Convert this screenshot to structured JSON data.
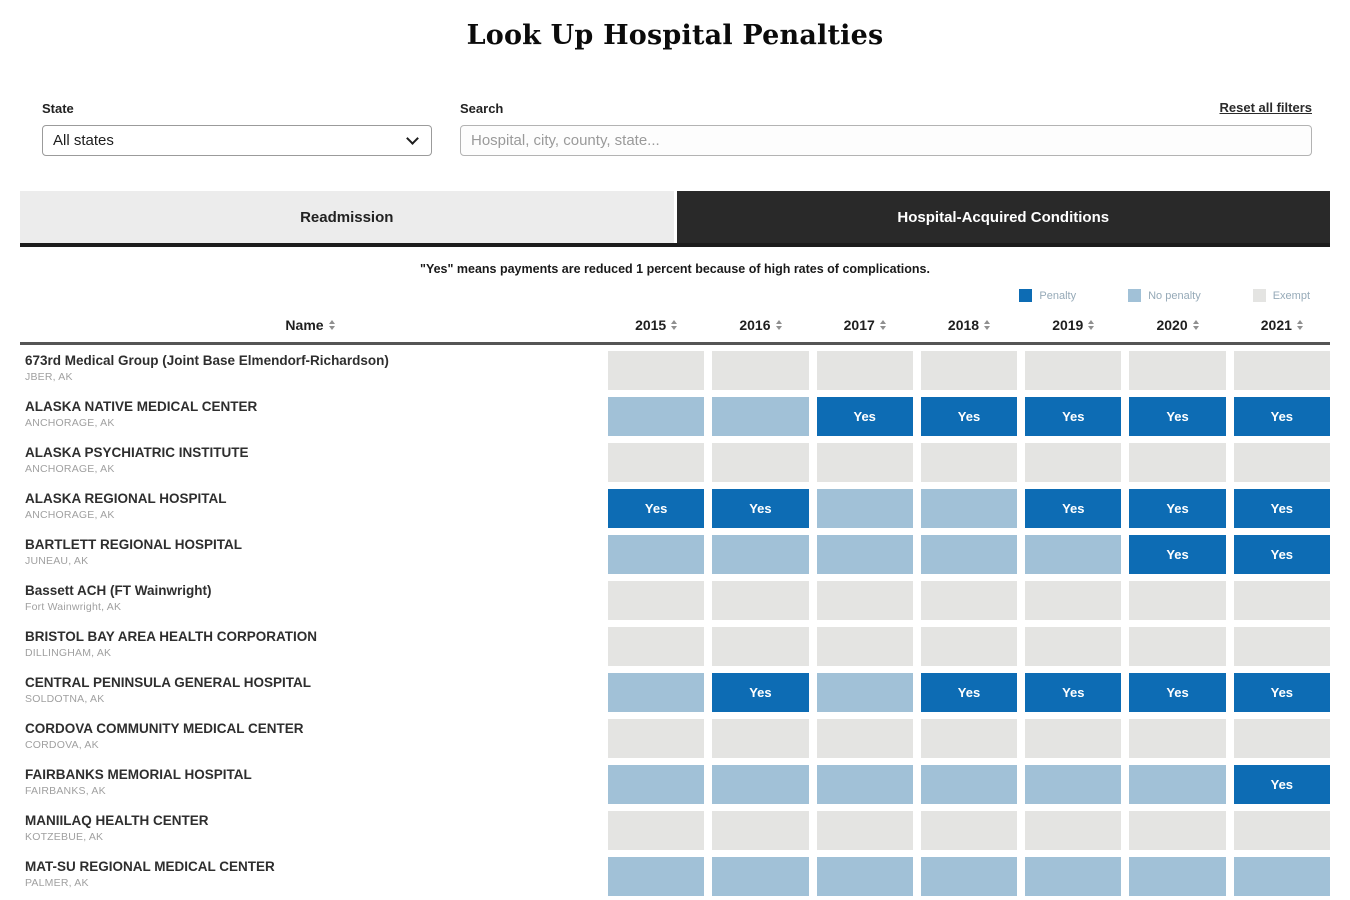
{
  "page": {
    "title": "Look Up Hospital Penalties"
  },
  "filters": {
    "reset_label": "Reset all filters",
    "state_label": "State",
    "state_value": "All states",
    "search_label": "Search",
    "search_placeholder": "Hospital, city, county, state..."
  },
  "tabs": [
    {
      "label": "Readmission",
      "active": false
    },
    {
      "label": "Hospital-Acquired Conditions",
      "active": true
    }
  ],
  "note": "\"Yes\" means payments are reduced 1 percent because of high rates of complications.",
  "legend": [
    {
      "label": "Penalty",
      "color": "#0d6cb4"
    },
    {
      "label": "No penalty",
      "color": "#a1c1d7"
    },
    {
      "label": "Exempt",
      "color": "#e4e4e2"
    }
  ],
  "table": {
    "name_header": "Name",
    "year_headers": [
      "2015",
      "2016",
      "2017",
      "2018",
      "2019",
      "2020",
      "2021"
    ],
    "yes_label": "Yes",
    "rows": [
      {
        "name": "673rd Medical Group (Joint Base Elmendorf-Richardson)",
        "location": "JBER, AK",
        "cells": [
          "exempt",
          "exempt",
          "exempt",
          "exempt",
          "exempt",
          "exempt",
          "exempt"
        ]
      },
      {
        "name": "ALASKA NATIVE MEDICAL CENTER",
        "location": "ANCHORAGE, AK",
        "cells": [
          "no_penalty",
          "no_penalty",
          "penalty",
          "penalty",
          "penalty",
          "penalty",
          "penalty"
        ]
      },
      {
        "name": "ALASKA PSYCHIATRIC INSTITUTE",
        "location": "ANCHORAGE, AK",
        "cells": [
          "exempt",
          "exempt",
          "exempt",
          "exempt",
          "exempt",
          "exempt",
          "exempt"
        ]
      },
      {
        "name": "ALASKA REGIONAL HOSPITAL",
        "location": "ANCHORAGE, AK",
        "cells": [
          "penalty",
          "penalty",
          "no_penalty",
          "no_penalty",
          "penalty",
          "penalty",
          "penalty"
        ]
      },
      {
        "name": "BARTLETT REGIONAL HOSPITAL",
        "location": "JUNEAU, AK",
        "cells": [
          "no_penalty",
          "no_penalty",
          "no_penalty",
          "no_penalty",
          "no_penalty",
          "penalty",
          "penalty"
        ]
      },
      {
        "name": "Bassett ACH (FT Wainwright)",
        "location": "Fort Wainwright, AK",
        "cells": [
          "exempt",
          "exempt",
          "exempt",
          "exempt",
          "exempt",
          "exempt",
          "exempt"
        ]
      },
      {
        "name": "BRISTOL BAY AREA HEALTH CORPORATION",
        "location": "DILLINGHAM, AK",
        "cells": [
          "exempt",
          "exempt",
          "exempt",
          "exempt",
          "exempt",
          "exempt",
          "exempt"
        ]
      },
      {
        "name": "CENTRAL PENINSULA GENERAL HOSPITAL",
        "location": "SOLDOTNA, AK",
        "cells": [
          "no_penalty",
          "penalty",
          "no_penalty",
          "penalty",
          "penalty",
          "penalty",
          "penalty"
        ]
      },
      {
        "name": "CORDOVA COMMUNITY MEDICAL CENTER",
        "location": "CORDOVA, AK",
        "cells": [
          "exempt",
          "exempt",
          "exempt",
          "exempt",
          "exempt",
          "exempt",
          "exempt"
        ]
      },
      {
        "name": "FAIRBANKS MEMORIAL HOSPITAL",
        "location": "FAIRBANKS, AK",
        "cells": [
          "no_penalty",
          "no_penalty",
          "no_penalty",
          "no_penalty",
          "no_penalty",
          "no_penalty",
          "penalty"
        ]
      },
      {
        "name": "MANIILAQ HEALTH CENTER",
        "location": "KOTZEBUE, AK",
        "cells": [
          "exempt",
          "exempt",
          "exempt",
          "exempt",
          "exempt",
          "exempt",
          "exempt"
        ]
      },
      {
        "name": "MAT-SU REGIONAL MEDICAL CENTER",
        "location": "PALMER, AK",
        "cells": [
          "no_penalty",
          "no_penalty",
          "no_penalty",
          "no_penalty",
          "no_penalty",
          "no_penalty",
          "no_penalty"
        ]
      }
    ]
  }
}
